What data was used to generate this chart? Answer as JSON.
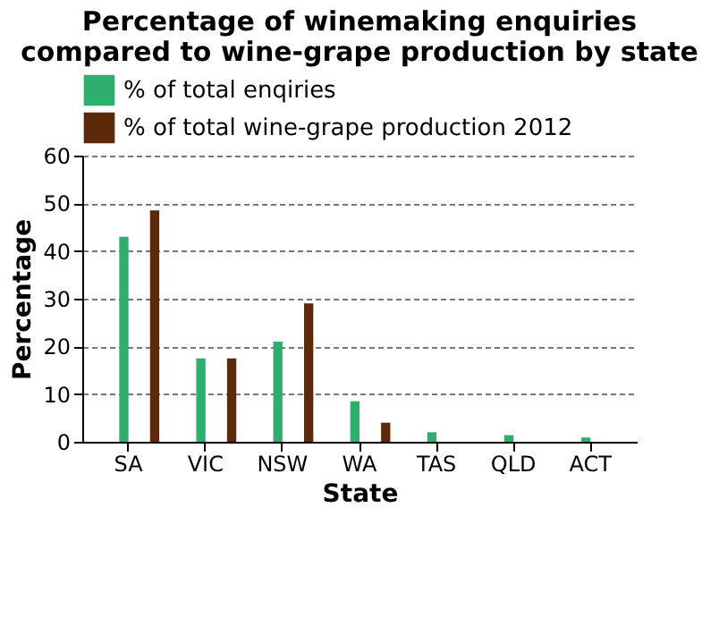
{
  "chart_data": {
    "type": "bar",
    "title": [
      "Percentage of winemaking enquiries",
      "compared to wine-grape production by state"
    ],
    "xlabel": "State",
    "ylabel": "Percentage",
    "categories": [
      "SA",
      "VIC",
      "NSW",
      "WA",
      "TAS",
      "QLD",
      "ACT"
    ],
    "series": [
      {
        "name": "% of total enqiries",
        "color": "#2eaf6e",
        "values": [
          43,
          17.5,
          21,
          8.5,
          2,
          1.4,
          0.9
        ]
      },
      {
        "name": "% of total wine-grape production 2012",
        "color": "#5c2a0a",
        "values": [
          48.5,
          17.5,
          29,
          4,
          0,
          0,
          0
        ]
      }
    ],
    "ylim": [
      0,
      60
    ],
    "yticks": [
      0,
      10,
      20,
      30,
      40,
      50,
      60
    ],
    "grid": "y",
    "legend": "top"
  }
}
